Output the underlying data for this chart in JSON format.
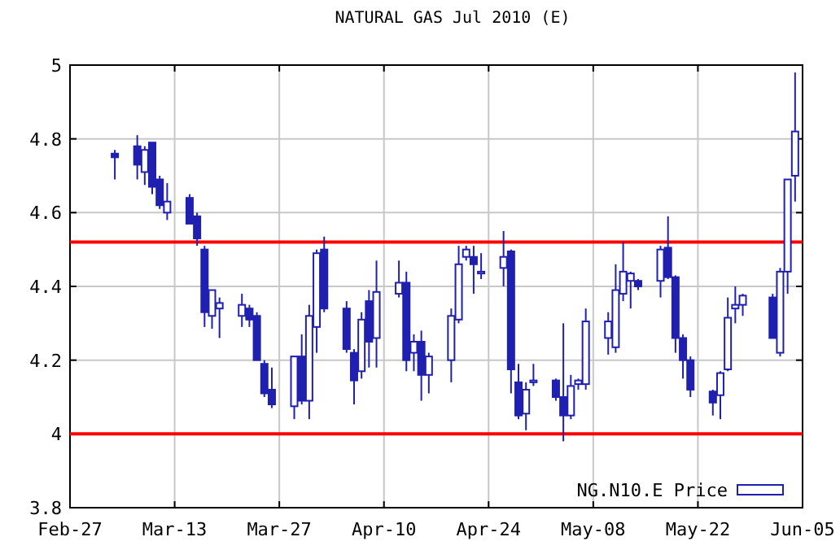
{
  "chart_data": {
    "type": "candlestick",
    "title": "NATURAL GAS Jul 2010 (E)",
    "x": [
      "2010-03-05",
      "2010-03-08",
      "2010-03-09",
      "2010-03-10",
      "2010-03-11",
      "2010-03-12",
      "2010-03-15",
      "2010-03-16",
      "2010-03-17",
      "2010-03-18",
      "2010-03-19",
      "2010-03-22",
      "2010-03-23",
      "2010-03-24",
      "2010-03-25",
      "2010-03-26",
      "2010-03-29",
      "2010-03-30",
      "2010-03-31",
      "2010-04-01",
      "2010-04-02",
      "2010-04-05",
      "2010-04-06",
      "2010-04-07",
      "2010-04-08",
      "2010-04-09",
      "2010-04-12",
      "2010-04-13",
      "2010-04-14",
      "2010-04-15",
      "2010-04-16",
      "2010-04-19",
      "2010-04-20",
      "2010-04-21",
      "2010-04-22",
      "2010-04-23",
      "2010-04-26",
      "2010-04-27",
      "2010-04-28",
      "2010-04-29",
      "2010-04-30",
      "2010-05-03",
      "2010-05-04",
      "2010-05-05",
      "2010-05-06",
      "2010-05-07",
      "2010-05-10",
      "2010-05-11",
      "2010-05-12",
      "2010-05-13",
      "2010-05-14",
      "2010-05-17",
      "2010-05-18",
      "2010-05-19",
      "2010-05-20",
      "2010-05-21",
      "2010-05-24",
      "2010-05-25",
      "2010-05-26",
      "2010-05-27",
      "2010-05-28",
      "2010-06-01",
      "2010-06-02",
      "2010-06-03",
      "2010-06-04"
    ],
    "series": [
      {
        "name": "NG.N10.E Price",
        "color": "#2020b0",
        "ohlc": [
          [
            4.76,
            4.77,
            4.69,
            4.75
          ],
          [
            4.78,
            4.81,
            4.69,
            4.73
          ],
          [
            4.71,
            4.78,
            4.675,
            4.77
          ],
          [
            4.79,
            4.79,
            4.65,
            4.67
          ],
          [
            4.69,
            4.7,
            4.61,
            4.62
          ],
          [
            4.6,
            4.68,
            4.58,
            4.63
          ],
          [
            4.64,
            4.65,
            4.57,
            4.57
          ],
          [
            4.59,
            4.6,
            4.51,
            4.53
          ],
          [
            4.5,
            4.51,
            4.29,
            4.33
          ],
          [
            4.32,
            4.39,
            4.285,
            4.39
          ],
          [
            4.34,
            4.37,
            4.26,
            4.355
          ],
          [
            4.32,
            4.38,
            4.29,
            4.35
          ],
          [
            4.34,
            4.35,
            4.29,
            4.31
          ],
          [
            4.32,
            4.33,
            4.2,
            4.2
          ],
          [
            4.19,
            4.2,
            4.1,
            4.11
          ],
          [
            4.12,
            4.18,
            4.07,
            4.08
          ],
          [
            4.075,
            4.21,
            4.04,
            4.21
          ],
          [
            4.21,
            4.27,
            4.08,
            4.09
          ],
          [
            4.09,
            4.35,
            4.04,
            4.32
          ],
          [
            4.29,
            4.5,
            4.22,
            4.49
          ],
          [
            4.5,
            4.535,
            4.33,
            4.34
          ],
          [
            4.34,
            4.36,
            4.22,
            4.23
          ],
          [
            4.22,
            4.23,
            4.08,
            4.145
          ],
          [
            4.17,
            4.33,
            4.15,
            4.31
          ],
          [
            4.36,
            4.39,
            4.18,
            4.25
          ],
          [
            4.26,
            4.47,
            4.18,
            4.385
          ],
          [
            4.38,
            4.47,
            4.37,
            4.41
          ],
          [
            4.41,
            4.44,
            4.17,
            4.2
          ],
          [
            4.22,
            4.27,
            4.17,
            4.25
          ],
          [
            4.25,
            4.28,
            4.09,
            4.16
          ],
          [
            4.16,
            4.22,
            4.11,
            4.21
          ],
          [
            4.2,
            4.34,
            4.14,
            4.32
          ],
          [
            4.31,
            4.51,
            4.3,
            4.46
          ],
          [
            4.48,
            4.51,
            4.47,
            4.5
          ],
          [
            4.48,
            4.51,
            4.38,
            4.46
          ],
          [
            4.435,
            4.49,
            4.42,
            4.44
          ],
          [
            4.45,
            4.55,
            4.4,
            4.48
          ],
          [
            4.495,
            4.5,
            4.11,
            4.175
          ],
          [
            4.14,
            4.19,
            4.04,
            4.05
          ],
          [
            4.055,
            4.14,
            4.01,
            4.12
          ],
          [
            4.14,
            4.19,
            4.13,
            4.145
          ],
          [
            4.145,
            4.15,
            4.09,
            4.1
          ],
          [
            4.1,
            4.3,
            3.98,
            4.05
          ],
          [
            4.05,
            4.16,
            4.04,
            4.13
          ],
          [
            4.135,
            4.15,
            4.12,
            4.145
          ],
          [
            4.135,
            4.34,
            4.12,
            4.305
          ],
          [
            4.26,
            4.33,
            4.215,
            4.305
          ],
          [
            4.235,
            4.46,
            4.22,
            4.39
          ],
          [
            4.38,
            4.52,
            4.36,
            4.44
          ],
          [
            4.415,
            4.44,
            4.34,
            4.435
          ],
          [
            4.415,
            4.42,
            4.39,
            4.4
          ],
          [
            4.415,
            4.51,
            4.37,
            4.5
          ],
          [
            4.505,
            4.59,
            4.42,
            4.425
          ],
          [
            4.425,
            4.43,
            4.22,
            4.26
          ],
          [
            4.26,
            4.27,
            4.15,
            4.2
          ],
          [
            4.2,
            4.21,
            4.1,
            4.12
          ],
          [
            4.115,
            4.12,
            4.05,
            4.085
          ],
          [
            4.105,
            4.17,
            4.04,
            4.165
          ],
          [
            4.175,
            4.37,
            4.17,
            4.315
          ],
          [
            4.34,
            4.4,
            4.3,
            4.35
          ],
          [
            4.35,
            4.38,
            4.32,
            4.375
          ],
          [
            4.37,
            4.38,
            4.26,
            4.26
          ],
          [
            4.22,
            4.45,
            4.21,
            4.44
          ],
          [
            4.44,
            4.69,
            4.38,
            4.69
          ],
          [
            4.7,
            4.98,
            4.63,
            4.82
          ]
        ]
      }
    ],
    "xlim": [
      "2010-02-27",
      "2010-06-05"
    ],
    "xticks": [
      {
        "value": "2010-02-27",
        "label": "Feb-27"
      },
      {
        "value": "2010-03-13",
        "label": "Mar-13"
      },
      {
        "value": "2010-03-27",
        "label": "Mar-27"
      },
      {
        "value": "2010-04-10",
        "label": "Apr-10"
      },
      {
        "value": "2010-04-24",
        "label": "Apr-24"
      },
      {
        "value": "2010-05-08",
        "label": "May-08"
      },
      {
        "value": "2010-05-22",
        "label": "May-22"
      },
      {
        "value": "2010-06-05",
        "label": "Jun-05"
      }
    ],
    "ylim": [
      3.8,
      5
    ],
    "yticks": [
      3.8,
      4,
      4.2,
      4.4,
      4.6,
      4.8,
      5
    ],
    "ref_lines": [
      {
        "axis": "y",
        "value": 4.52,
        "color": "#ff0000"
      },
      {
        "axis": "y",
        "value": 4.0,
        "color": "#ff0000"
      }
    ],
    "grid": true,
    "legend": "bottom right"
  }
}
